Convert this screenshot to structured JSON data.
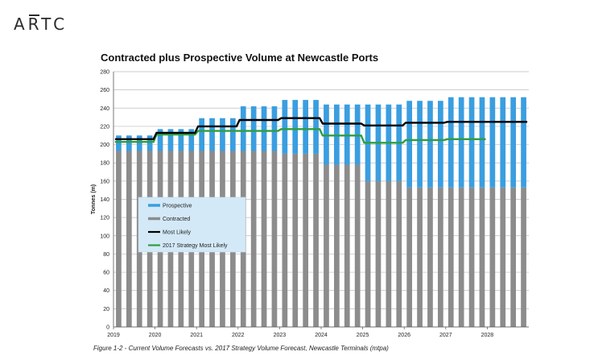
{
  "logo": {
    "text": "ARTC"
  },
  "caption": "Figure 1-2 - Current Volume Forecasts vs. 2017 Strategy Volume Forecast, Newcastle Terminals (mtpa)",
  "chart_data": {
    "type": "bar",
    "stacked": true,
    "title": "Contracted plus Prospective Volume at Newcastle Ports",
    "xlabel": "",
    "ylabel": "Tonnes (m)",
    "ylim": [
      0,
      280
    ],
    "yticks": [
      0,
      20,
      40,
      60,
      80,
      100,
      120,
      140,
      160,
      180,
      200,
      220,
      240,
      260,
      280
    ],
    "grid": true,
    "legend_position": "middle-left",
    "x_tick_labels": [
      "2019",
      "2020",
      "2021",
      "2022",
      "2023",
      "2024",
      "2025",
      "2026",
      "2027",
      "2028"
    ],
    "categories": [
      "2019 Q1",
      "2019 Q2",
      "2019 Q3",
      "2019 Q4",
      "2020 Q1",
      "2020 Q2",
      "2020 Q3",
      "2020 Q4",
      "2021 Q1",
      "2021 Q2",
      "2021 Q3",
      "2021 Q4",
      "2022 Q1",
      "2022 Q2",
      "2022 Q3",
      "2022 Q4",
      "2023 Q1",
      "2023 Q2",
      "2023 Q3",
      "2023 Q4",
      "2024 Q1",
      "2024 Q2",
      "2024 Q3",
      "2024 Q4",
      "2025 Q1",
      "2025 Q2",
      "2025 Q3",
      "2025 Q4",
      "2026 Q1",
      "2026 Q2",
      "2026 Q3",
      "2026 Q4",
      "2027 Q1",
      "2027 Q2",
      "2027 Q3",
      "2027 Q4",
      "2028 Q1",
      "2028 Q2",
      "2028 Q3",
      "2028 Q4"
    ],
    "series": [
      {
        "name": "Contracted",
        "kind": "bar",
        "color": "#8c8c8c",
        "values": [
          193,
          193,
          193,
          193,
          193,
          193,
          193,
          193,
          193,
          193,
          193,
          193,
          193,
          193,
          193,
          193,
          190,
          190,
          190,
          190,
          178,
          178,
          178,
          178,
          160,
          160,
          160,
          160,
          153,
          153,
          153,
          153,
          153,
          153,
          153,
          153,
          153,
          153,
          153,
          153
        ]
      },
      {
        "name": "Prospective",
        "kind": "bar",
        "color": "#3a9ee0",
        "values": [
          17,
          17,
          17,
          17,
          24,
          24,
          24,
          24,
          36,
          36,
          36,
          36,
          49,
          49,
          49,
          49,
          59,
          59,
          59,
          59,
          66,
          66,
          66,
          66,
          84,
          84,
          84,
          84,
          95,
          95,
          95,
          95,
          99,
          99,
          99,
          99,
          99,
          99,
          99,
          99
        ]
      },
      {
        "name": "Most Likely",
        "kind": "line",
        "color": "#000000",
        "values": [
          206,
          206,
          206,
          206,
          213,
          213,
          213,
          213,
          220,
          220,
          220,
          220,
          227,
          227,
          227,
          227,
          229,
          229,
          229,
          229,
          223,
          223,
          223,
          223,
          221,
          221,
          221,
          221,
          224,
          224,
          224,
          224,
          225,
          225,
          225,
          225,
          225,
          225,
          225,
          225
        ]
      },
      {
        "name": "2017 Strategy Most Likely",
        "kind": "line",
        "color": "#2e9e3e",
        "values": [
          203,
          203,
          203,
          203,
          211,
          211,
          211,
          211,
          215,
          215,
          215,
          215,
          215,
          215,
          215,
          215,
          217,
          217,
          217,
          217,
          210,
          210,
          210,
          210,
          202,
          202,
          202,
          202,
          205,
          205,
          205,
          205,
          206,
          206,
          206,
          206,
          null,
          null,
          null,
          null
        ]
      }
    ],
    "legend": [
      "Prospective",
      "Contracted",
      "Most Likely",
      "2017 Strategy Most Likely"
    ]
  }
}
